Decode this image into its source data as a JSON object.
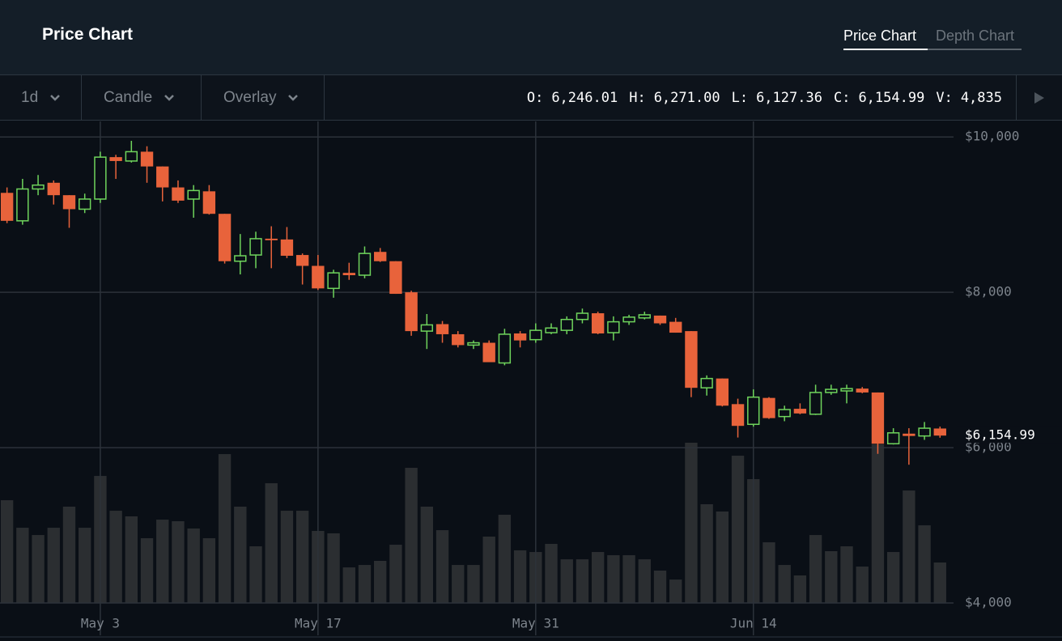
{
  "header": {
    "title": "Price Chart",
    "tabs": [
      "Price Chart",
      "Depth Chart"
    ]
  },
  "toolbar": {
    "interval": "1d",
    "style": "Candle",
    "overlay": "Overlay",
    "readout": [
      {
        "label": "O:",
        "value": "6,246.01"
      },
      {
        "label": "H:",
        "value": "6,271.00"
      },
      {
        "label": "L:",
        "value": "6,127.36"
      },
      {
        "label": "C:",
        "value": "6,154.99"
      },
      {
        "label": "V:",
        "value": "4,835"
      }
    ]
  },
  "chart_data": {
    "type": "candlestick",
    "xlim": [
      -0.45,
      60.87
    ],
    "xticks": [
      {
        "value": 6,
        "label": "May 3"
      },
      {
        "value": 20,
        "label": "May 17"
      },
      {
        "value": 34,
        "label": "May 31"
      },
      {
        "value": 48,
        "label": "Jun 14"
      }
    ],
    "ylim": [
      4000,
      10200
    ],
    "yticks": [
      {
        "value": 4000,
        "label": "$4,000"
      },
      {
        "value": 6000,
        "label": "$6,000"
      },
      {
        "value": 8000,
        "label": "$8,000"
      },
      {
        "value": 10000,
        "label": "$10,000"
      }
    ],
    "grid": true,
    "up_color": "#6fd45c",
    "down_color": "#e8633b",
    "volume_color": "#2b2e31",
    "last_price_label": "$6,154.99",
    "open": [
      9280,
      8920,
      9330,
      9410,
      9250,
      9070,
      9200,
      9740,
      9690,
      9810,
      9620,
      9350,
      9200,
      9300,
      9010,
      8400,
      8480,
      8690,
      8680,
      8480,
      8340,
      8050,
      8250,
      8220,
      8520,
      8400,
      8000,
      7500,
      7590,
      7460,
      7320,
      7350,
      7090,
      7470,
      7390,
      7480,
      7510,
      7650,
      7730,
      7480,
      7620,
      7670,
      7700,
      7620,
      7500,
      6770,
      6890,
      6560,
      6300,
      6640,
      6400,
      6500,
      6430,
      6710,
      6730,
      6760,
      6710,
      6050,
      6180,
      6150,
      6246.01
    ],
    "high": [
      9350,
      9460,
      9510,
      9440,
      9250,
      9270,
      9810,
      9770,
      9950,
      9880,
      9620,
      9440,
      9380,
      9380,
      9010,
      8750,
      8780,
      8850,
      8840,
      8500,
      8480,
      8290,
      8380,
      8590,
      8570,
      8400,
      8020,
      7720,
      7630,
      7500,
      7380,
      7380,
      7530,
      7500,
      7600,
      7600,
      7690,
      7790,
      7750,
      7690,
      7710,
      7750,
      7700,
      7670,
      7500,
      6930,
      6890,
      6630,
      6750,
      6650,
      6540,
      6570,
      6810,
      6810,
      6810,
      6780,
      6710,
      6250,
      6250,
      6330,
      6271
    ],
    "low": [
      8890,
      8870,
      9250,
      9130,
      8830,
      9020,
      9150,
      9460,
      9670,
      9410,
      9170,
      9150,
      8960,
      9000,
      8370,
      8230,
      8310,
      8310,
      8440,
      8100,
      8030,
      7930,
      8160,
      8180,
      8390,
      7980,
      7440,
      7270,
      7350,
      7290,
      7270,
      7100,
      7060,
      7290,
      7350,
      7460,
      7460,
      7600,
      7460,
      7380,
      7580,
      7650,
      7580,
      7480,
      6650,
      6670,
      6530,
      6130,
      6270,
      6370,
      6340,
      6430,
      6420,
      6680,
      6570,
      6700,
      5920,
      6040,
      5780,
      6100,
      6127.36
    ],
    "close": [
      8920,
      9330,
      9380,
      9250,
      9070,
      9200,
      9740,
      9690,
      9810,
      9620,
      9350,
      9180,
      9310,
      9010,
      8400,
      8470,
      8690,
      8670,
      8470,
      8340,
      8050,
      8250,
      8220,
      8500,
      8400,
      7980,
      7500,
      7580,
      7460,
      7320,
      7350,
      7100,
      7460,
      7380,
      7510,
      7540,
      7650,
      7730,
      7470,
      7620,
      7680,
      7710,
      7600,
      7480,
      6770,
      6890,
      6540,
      6280,
      6650,
      6380,
      6490,
      6440,
      6710,
      6750,
      6760,
      6710,
      6050,
      6190,
      6150,
      6250,
      6154.99
    ],
    "volume": [
      12280,
      8990,
      8120,
      8990,
      11510,
      8990,
      15180,
      11020,
      10350,
      7740,
      9960,
      9770,
      8900,
      7740,
      17790,
      11510,
      6770,
      14310,
      11020,
      11020,
      8610,
      8320,
      4250,
      4540,
      5030,
      6960,
      16150,
      11510,
      8700,
      4540,
      4540,
      7930,
      10540,
      6290,
      6090,
      7060,
      5220,
      5220,
      6090,
      5710,
      5710,
      5220,
      3870,
      2800,
      19150,
      11800,
      10930,
      17600,
      14800,
      7250,
      4540,
      3290,
      8120,
      6190,
      6770,
      4350,
      18950,
      6090,
      13440,
      9280,
      4835
    ]
  }
}
